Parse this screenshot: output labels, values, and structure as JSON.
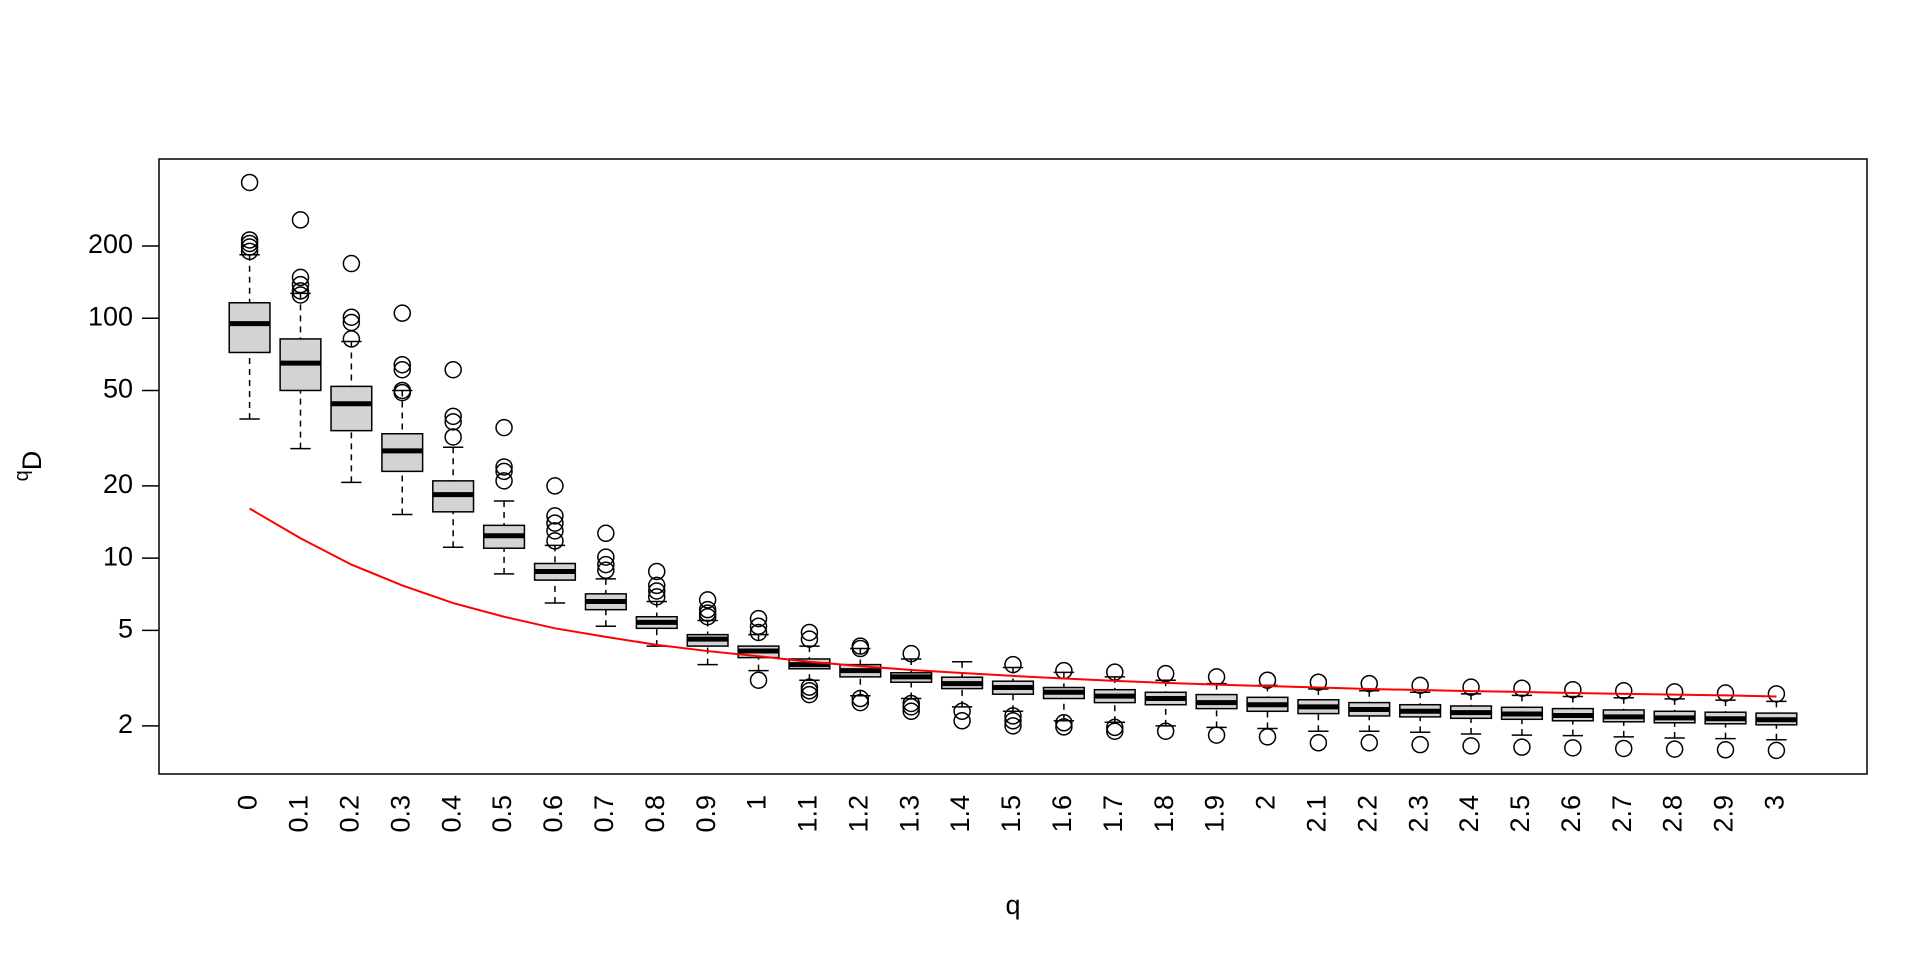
{
  "chart_data": {
    "type": "boxplot",
    "xlabel": "q",
    "ylabel": "D",
    "ylabel_superscript": "q",
    "log_y": true,
    "ylim": [
      1.26,
      461
    ],
    "yticks": [
      2,
      5,
      10,
      20,
      50,
      100,
      200
    ],
    "box_color": "#d3d3d3",
    "categories": [
      "0",
      "0.1",
      "0.2",
      "0.3",
      "0.4",
      "0.5",
      "0.6",
      "0.7",
      "0.8",
      "0.9",
      "1",
      "1.1",
      "1.2",
      "1.3",
      "1.4",
      "1.5",
      "1.6",
      "1.7",
      "1.8",
      "1.9",
      "2",
      "2.1",
      "2.2",
      "2.3",
      "2.4",
      "2.5",
      "2.6",
      "2.7",
      "2.8",
      "2.9",
      "3"
    ],
    "boxes": [
      {
        "low": 38,
        "q1": 72,
        "median": 95,
        "q3": 116,
        "high": 184,
        "outliers": [
          368,
          212,
          205,
          198,
          190
        ]
      },
      {
        "low": 28.6,
        "q1": 50,
        "median": 65,
        "q3": 82,
        "high": 127,
        "outliers": [
          257,
          148,
          138,
          130,
          125
        ]
      },
      {
        "low": 20.7,
        "q1": 34,
        "median": 44,
        "q3": 52,
        "high": 80,
        "outliers": [
          169,
          101,
          96,
          82
        ]
      },
      {
        "low": 15.2,
        "q1": 23,
        "median": 28,
        "q3": 33,
        "high": 50,
        "outliers": [
          105,
          64,
          61,
          50,
          49
        ]
      },
      {
        "low": 11.1,
        "q1": 15.6,
        "median": 18.4,
        "q3": 21,
        "high": 29,
        "outliers": [
          61,
          39,
          37,
          32
        ]
      },
      {
        "low": 8.6,
        "q1": 11,
        "median": 12.4,
        "q3": 13.7,
        "high": 17.3,
        "outliers": [
          35,
          24,
          23,
          21
        ]
      },
      {
        "low": 6.5,
        "q1": 8.1,
        "median": 8.8,
        "q3": 9.5,
        "high": 11.3,
        "outliers": [
          20,
          15,
          14,
          13,
          11.8
        ]
      },
      {
        "low": 5.2,
        "q1": 6.1,
        "median": 6.6,
        "q3": 7.1,
        "high": 8.2,
        "outliers": [
          12.7,
          10.1,
          9.4,
          8.9
        ]
      },
      {
        "low": 4.3,
        "q1": 5.1,
        "median": 5.4,
        "q3": 5.7,
        "high": 6.6,
        "outliers": [
          8.8,
          7.7,
          7.3,
          6.9
        ]
      },
      {
        "low": 3.6,
        "q1": 4.3,
        "median": 4.6,
        "q3": 4.8,
        "high": 5.5,
        "outliers": [
          6.7,
          6.1,
          5.9,
          5.7
        ]
      },
      {
        "low": 3.4,
        "q1": 3.85,
        "median": 4.1,
        "q3": 4.3,
        "high": 4.8,
        "outliers": [
          5.6,
          5.2,
          4.9,
          3.1
        ]
      },
      {
        "low": 3.1,
        "q1": 3.46,
        "median": 3.6,
        "q3": 3.8,
        "high": 4.3,
        "outliers": [
          4.9,
          4.6,
          2.9,
          2.8,
          2.7
        ]
      },
      {
        "low": 2.67,
        "q1": 3.2,
        "median": 3.4,
        "q3": 3.6,
        "high": 4.2,
        "outliers": [
          4.3,
          4.2,
          2.6,
          2.5
        ]
      },
      {
        "low": 2.6,
        "q1": 3.04,
        "median": 3.2,
        "q3": 3.33,
        "high": 3.8,
        "outliers": [
          4.0,
          2.48,
          2.4,
          2.3
        ]
      },
      {
        "low": 2.4,
        "q1": 2.86,
        "median": 3.0,
        "q3": 3.19,
        "high": 3.7,
        "outliers": [
          2.3,
          2.1
        ]
      },
      {
        "low": 2.3,
        "q1": 2.71,
        "median": 2.89,
        "q3": 3.07,
        "high": 3.5,
        "outliers": [
          3.6,
          2.2,
          2.1,
          2.0
        ]
      },
      {
        "low": 2.1,
        "q1": 2.6,
        "median": 2.76,
        "q3": 2.89,
        "high": 3.34,
        "outliers": [
          3.4,
          2.06,
          1.98
        ]
      },
      {
        "low": 2.07,
        "q1": 2.5,
        "median": 2.66,
        "q3": 2.83,
        "high": 3.2,
        "outliers": [
          3.35,
          1.97,
          1.9
        ]
      },
      {
        "low": 2.0,
        "q1": 2.45,
        "median": 2.6,
        "q3": 2.76,
        "high": 3.1,
        "outliers": [
          3.3,
          1.9
        ]
      },
      {
        "low": 1.97,
        "q1": 2.36,
        "median": 2.5,
        "q3": 2.7,
        "high": 3.0,
        "outliers": [
          3.2,
          1.83
        ]
      },
      {
        "low": 1.95,
        "q1": 2.3,
        "median": 2.45,
        "q3": 2.63,
        "high": 2.95,
        "outliers": [
          3.1,
          1.8
        ]
      },
      {
        "low": 1.9,
        "q1": 2.25,
        "median": 2.4,
        "q3": 2.57,
        "high": 2.85,
        "outliers": [
          3.04,
          1.7
        ]
      },
      {
        "low": 1.9,
        "q1": 2.2,
        "median": 2.34,
        "q3": 2.5,
        "high": 2.8,
        "outliers": [
          3.0,
          1.7
        ]
      },
      {
        "low": 1.88,
        "q1": 2.18,
        "median": 2.3,
        "q3": 2.45,
        "high": 2.76,
        "outliers": [
          2.95,
          1.67
        ]
      },
      {
        "low": 1.85,
        "q1": 2.15,
        "median": 2.27,
        "q3": 2.42,
        "high": 2.72,
        "outliers": [
          2.9,
          1.65
        ]
      },
      {
        "low": 1.83,
        "q1": 2.13,
        "median": 2.24,
        "q3": 2.39,
        "high": 2.68,
        "outliers": [
          2.87,
          1.63
        ]
      },
      {
        "low": 1.82,
        "q1": 2.1,
        "median": 2.21,
        "q3": 2.36,
        "high": 2.65,
        "outliers": [
          2.83,
          1.62
        ]
      },
      {
        "low": 1.8,
        "q1": 2.08,
        "median": 2.18,
        "q3": 2.33,
        "high": 2.62,
        "outliers": [
          2.8,
          1.61
        ]
      },
      {
        "low": 1.78,
        "q1": 2.06,
        "median": 2.16,
        "q3": 2.3,
        "high": 2.59,
        "outliers": [
          2.77,
          1.6
        ]
      },
      {
        "low": 1.77,
        "q1": 2.04,
        "median": 2.14,
        "q3": 2.28,
        "high": 2.56,
        "outliers": [
          2.74,
          1.59
        ]
      },
      {
        "low": 1.75,
        "q1": 2.02,
        "median": 2.12,
        "q3": 2.26,
        "high": 2.53,
        "outliers": [
          2.72,
          1.58
        ]
      }
    ],
    "line": {
      "color": "#ff0000",
      "values": [
        16.1,
        12.1,
        9.4,
        7.7,
        6.5,
        5.7,
        5.1,
        4.7,
        4.35,
        4.1,
        3.9,
        3.7,
        3.55,
        3.42,
        3.32,
        3.23,
        3.15,
        3.08,
        3.02,
        2.97,
        2.93,
        2.89,
        2.85,
        2.82,
        2.79,
        2.77,
        2.74,
        2.72,
        2.7,
        2.68,
        2.65
      ]
    }
  }
}
